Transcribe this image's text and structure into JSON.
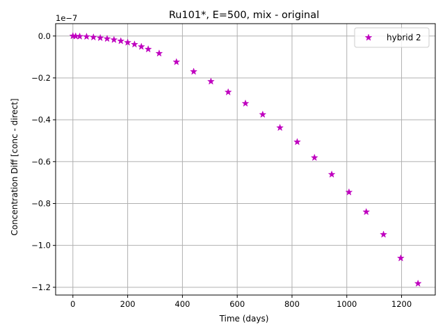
{
  "chart_data": {
    "type": "scatter",
    "title": "Ru101*, E=500, mix - original",
    "xlabel": "Time (days)",
    "ylabel": "Concentration Diff [conc - direct]",
    "y_offset_label": "1e−7",
    "xlim": [
      -63,
      1323
    ],
    "ylim": [
      -1.237,
      0.059
    ],
    "xticks": [
      0,
      200,
      400,
      600,
      800,
      1000,
      1200
    ],
    "xtick_labels": [
      "0",
      "200",
      "400",
      "600",
      "800",
      "1000",
      "1200"
    ],
    "yticks": [
      0.0,
      -0.2,
      -0.4,
      -0.6,
      -0.8,
      -1.0,
      -1.2
    ],
    "ytick_labels": [
      "0.0",
      "−0.2",
      "−0.4",
      "−0.6",
      "−0.8",
      "−1.0",
      "−1.2"
    ],
    "grid": true,
    "legend_position": "top-right",
    "marker": "star",
    "color": "#bf00bf",
    "series": [
      {
        "name": "hybrid 2",
        "x": [
          0,
          10,
          25,
          50,
          75,
          100,
          125,
          150,
          175,
          200,
          225,
          250,
          275,
          315,
          378,
          441,
          504,
          567,
          630,
          693,
          756,
          819,
          882,
          945,
          1008,
          1071,
          1134,
          1197,
          1260
        ],
        "y": [
          0.0,
          -0.001,
          -0.002,
          -0.003,
          -0.006,
          -0.009,
          -0.013,
          -0.018,
          -0.024,
          -0.031,
          -0.04,
          -0.051,
          -0.063,
          -0.083,
          -0.124,
          -0.17,
          -0.217,
          -0.268,
          -0.322,
          -0.375,
          -0.438,
          -0.506,
          -0.581,
          -0.661,
          -0.746,
          -0.84,
          -0.948,
          -1.061,
          -1.182
        ]
      }
    ]
  }
}
